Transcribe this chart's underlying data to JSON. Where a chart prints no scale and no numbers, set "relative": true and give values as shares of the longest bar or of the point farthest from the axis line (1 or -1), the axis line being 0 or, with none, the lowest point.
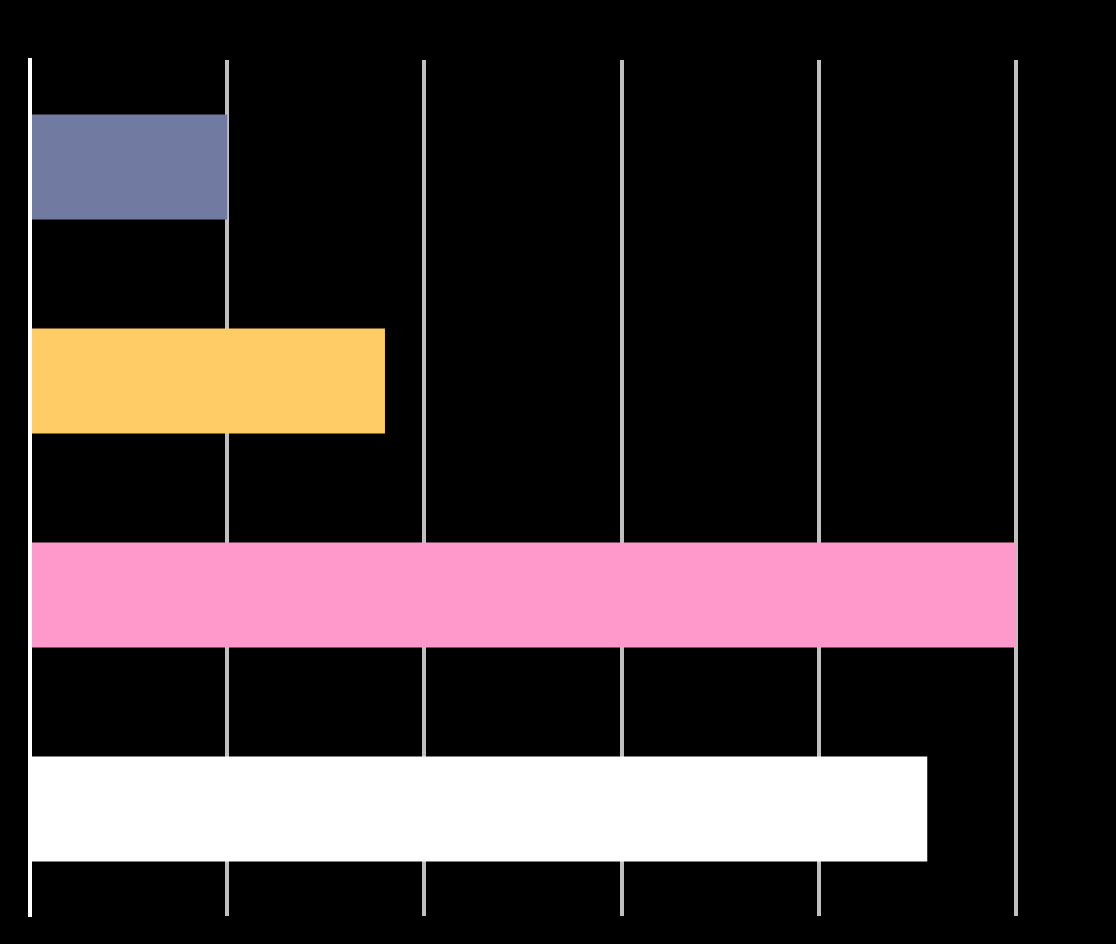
{
  "chart_data": {
    "type": "bar",
    "orientation": "horizontal",
    "relative": true,
    "categories": [
      null,
      null,
      null,
      null
    ],
    "values": [
      0.2,
      0.36,
      1,
      0.91
    ],
    "colors": [
      "#717aa0",
      "#ffcc66",
      "#ff99cc",
      "#ffffff"
    ],
    "grid": "x",
    "legend": false
  }
}
